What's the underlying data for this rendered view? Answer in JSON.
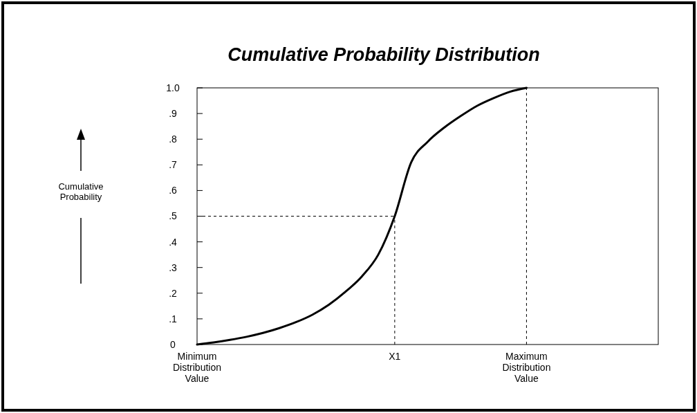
{
  "chart_data": {
    "type": "line",
    "title": "Cumulative Probability Distribution",
    "annotations": [
      "Cumulative Probability"
    ],
    "categories": [
      "Minimum\nDistribution\nValue",
      null,
      null,
      null,
      null,
      null,
      null,
      null,
      null,
      null,
      null,
      null,
      "X1",
      null,
      null,
      null,
      null,
      null,
      null,
      null,
      "Maximum\nDistribution\nValue",
      null,
      null,
      null,
      null,
      null,
      null,
      null,
      null
    ],
    "ylim": [
      0,
      1
    ],
    "yticks": [
      0,
      {
        "value": 0.1,
        "label": ".1"
      },
      {
        "value": 0.2,
        "label": ".2"
      },
      {
        "value": 0.3,
        "label": ".3"
      },
      {
        "value": 0.4,
        "label": ".4"
      },
      {
        "value": 0.5,
        "label": ".5"
      },
      {
        "value": 0.6,
        "label": ".6"
      },
      {
        "value": 0.7,
        "label": ".7"
      },
      {
        "value": 0.8,
        "label": ".8"
      },
      {
        "value": 0.9,
        "label": ".9"
      },
      {
        "value": 1,
        "label": "1.0"
      }
    ],
    "grid": false,
    "line_style": "solid",
    "series": [
      {
        "color": "#000000",
        "values": [
          0,
          0.008,
          0.018,
          0.03,
          0.045,
          0.064,
          0.087,
          0.116,
          0.155,
          0.205,
          0.265,
          0.35,
          0.5,
          0.71,
          0.79,
          0.845,
          0.89,
          0.93,
          0.96,
          0.985,
          1,
          null,
          null,
          null,
          null,
          null,
          null,
          null,
          null
        ]
      }
    ],
    "ref_lines": [
      {
        "axis": "y",
        "value": 0.5,
        "color": "#000000",
        "line_style": "dashed"
      },
      {
        "axis": "x",
        "value": "X1",
        "color": "#000000",
        "line_style": "dashed"
      },
      {
        "axis": "x",
        "value": "Maximum\nDistribution\nValue",
        "color": "#000000",
        "line_style": "dashed"
      }
    ]
  }
}
